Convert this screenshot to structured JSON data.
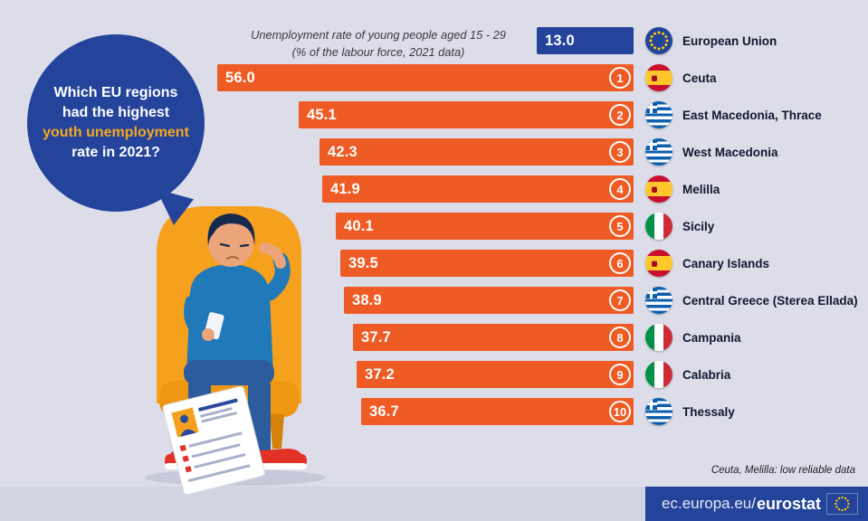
{
  "bubble": {
    "line1": "Which EU regions",
    "line2": "had the highest",
    "line3": "youth unemployment",
    "line4": "rate in 2021?"
  },
  "chart_data": {
    "type": "bar",
    "title": "Unemployment rate of young people aged 15 - 29",
    "subtitle": "(% of the labour force, 2021 data)",
    "orientation": "horizontal-right-aligned",
    "xlim": [
      0,
      56
    ],
    "eu_row": {
      "label": "European Union",
      "value": 13.0,
      "value_label": "13.0",
      "flag": "eu"
    },
    "rows": [
      {
        "rank": "1",
        "value": 56.0,
        "value_label": "56.0",
        "region": "Ceuta",
        "flag": "es"
      },
      {
        "rank": "2",
        "value": 45.1,
        "value_label": "45.1",
        "region": "East Macedonia, Thrace",
        "flag": "gr"
      },
      {
        "rank": "3",
        "value": 42.3,
        "value_label": "42.3",
        "region": "West Macedonia",
        "flag": "gr"
      },
      {
        "rank": "4",
        "value": 41.9,
        "value_label": "41.9",
        "region": "Melilla",
        "flag": "es"
      },
      {
        "rank": "5",
        "value": 40.1,
        "value_label": "40.1",
        "region": "Sicily",
        "flag": "it"
      },
      {
        "rank": "6",
        "value": 39.5,
        "value_label": "39.5",
        "region": "Canary Islands",
        "flag": "es"
      },
      {
        "rank": "7",
        "value": 38.9,
        "value_label": "38.9",
        "region": "Central Greece (Sterea Ellada)",
        "flag": "gr"
      },
      {
        "rank": "8",
        "value": 37.7,
        "value_label": "37.7",
        "region": "Campania",
        "flag": "it"
      },
      {
        "rank": "9",
        "value": 37.2,
        "value_label": "37.2",
        "region": "Calabria",
        "flag": "it"
      },
      {
        "rank": "10",
        "value": 36.7,
        "value_label": "36.7",
        "region": "Thessaly",
        "flag": "gr"
      }
    ]
  },
  "footnote": "Ceuta, Melilla: low reliable data",
  "footer": {
    "url_prefix": "ec.europa.eu/",
    "brand": "eurostat",
    "flag": "eu"
  },
  "colors": {
    "bar_orange": "#ee5b24",
    "eu_blue": "#24449b",
    "highlight_yellow": "#f6a822",
    "background": "#dcdde8"
  }
}
